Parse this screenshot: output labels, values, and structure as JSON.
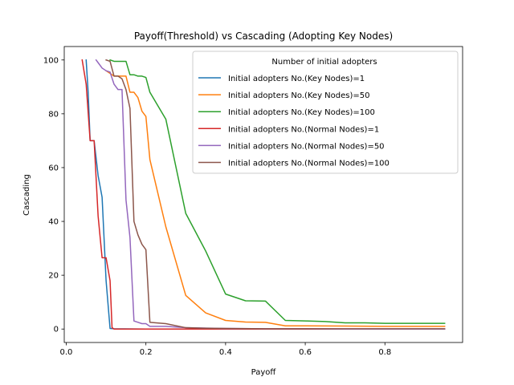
{
  "chart_data": {
    "type": "line",
    "title": "Payoff(Threshold) vs Cascading (Adopting Key Nodes)",
    "xlabel": "Payoff",
    "ylabel": "Cascading",
    "xlim": [
      -0.005,
      0.995
    ],
    "ylim": [
      -5,
      105
    ],
    "xticks": [
      0.0,
      0.2,
      0.4,
      0.6,
      0.8
    ],
    "xtick_labels": [
      "0.0",
      "0.2",
      "0.4",
      "0.6",
      "0.8"
    ],
    "yticks": [
      0,
      20,
      40,
      60,
      80,
      100
    ],
    "ytick_labels": [
      "0",
      "20",
      "40",
      "60",
      "80",
      "100"
    ],
    "grid": false,
    "legend": {
      "title": "Number of initial adopters",
      "placement": "top-right"
    },
    "series": [
      {
        "name": "Initial adopters No.(Key Nodes)=1",
        "color": "#1f77b4",
        "x": [
          0.05,
          0.055,
          0.06,
          0.07,
          0.08,
          0.09,
          0.1,
          0.11,
          0.12,
          0.2,
          0.3,
          0.4,
          0.5,
          0.6,
          0.7,
          0.8,
          0.95
        ],
        "y": [
          100,
          88,
          70,
          70,
          57,
          49,
          18,
          0.2,
          0.1,
          0,
          0,
          0,
          0,
          0,
          0,
          0,
          0
        ]
      },
      {
        "name": "Initial adopters No.(Key Nodes)=50",
        "color": "#ff7f0e",
        "x": [
          0.1,
          0.11,
          0.12,
          0.13,
          0.14,
          0.15,
          0.16,
          0.17,
          0.18,
          0.19,
          0.2,
          0.21,
          0.25,
          0.3,
          0.35,
          0.4,
          0.45,
          0.5,
          0.55,
          0.6,
          0.7,
          0.8,
          0.95
        ],
        "y": [
          96,
          95,
          94,
          94,
          94,
          94,
          88,
          88,
          86,
          81,
          79,
          63,
          38,
          12.5,
          6,
          3.2,
          2.6,
          2.5,
          1.2,
          1.2,
          1.1,
          1.0,
          1.0
        ]
      },
      {
        "name": "Initial adopters No.(Key Nodes)=100",
        "color": "#2ca02c",
        "x": [
          0.11,
          0.12,
          0.15,
          0.16,
          0.17,
          0.18,
          0.19,
          0.2,
          0.21,
          0.25,
          0.3,
          0.35,
          0.4,
          0.45,
          0.5,
          0.55,
          0.6,
          0.65,
          0.7,
          0.75,
          0.8,
          0.85,
          0.95
        ],
        "y": [
          100,
          99.5,
          99.5,
          94.5,
          94.5,
          94,
          94,
          93.5,
          88,
          78,
          43,
          29,
          13,
          10.5,
          10.4,
          3.2,
          3,
          2.8,
          2.3,
          2.3,
          2.1,
          2.1,
          2.1
        ]
      },
      {
        "name": "Initial adopters No.(Normal Nodes)=1",
        "color": "#d62728",
        "x": [
          0.04,
          0.05,
          0.06,
          0.07,
          0.08,
          0.09,
          0.1,
          0.11,
          0.115,
          0.12,
          0.2,
          0.3,
          0.4,
          0.5,
          0.6,
          0.7,
          0.8,
          0.95
        ],
        "y": [
          100,
          91,
          70,
          70,
          42,
          26.5,
          26.5,
          18,
          0.5,
          0,
          0,
          0,
          0,
          0,
          0,
          0,
          0,
          0
        ]
      },
      {
        "name": "Initial adopters No.(Normal Nodes)=50",
        "color": "#9467bd",
        "x": [
          0.075,
          0.08,
          0.09,
          0.1,
          0.11,
          0.12,
          0.13,
          0.14,
          0.15,
          0.16,
          0.17,
          0.18,
          0.19,
          0.2,
          0.21,
          0.25,
          0.3,
          0.4,
          0.5,
          0.6,
          0.7,
          0.8,
          0.95
        ],
        "y": [
          100,
          99,
          97,
          96,
          95.5,
          91,
          89,
          89,
          48,
          34,
          3,
          2.5,
          2,
          2,
          1,
          1,
          0.5,
          0.2,
          0.1,
          0.1,
          0,
          0,
          0
        ]
      },
      {
        "name": "Initial adopters No.(Normal Nodes)=100",
        "color": "#8c564b",
        "x": [
          0.1,
          0.11,
          0.12,
          0.13,
          0.14,
          0.15,
          0.16,
          0.17,
          0.18,
          0.19,
          0.2,
          0.21,
          0.25,
          0.3,
          0.35,
          0.4,
          0.5,
          0.6,
          0.7,
          0.8,
          0.95
        ],
        "y": [
          100,
          99.5,
          94,
          94,
          93,
          89,
          82,
          40,
          35,
          31.5,
          29.5,
          2.5,
          2,
          0.5,
          0.3,
          0.2,
          0.1,
          0.1,
          0.1,
          0.1,
          0.1
        ]
      }
    ]
  }
}
